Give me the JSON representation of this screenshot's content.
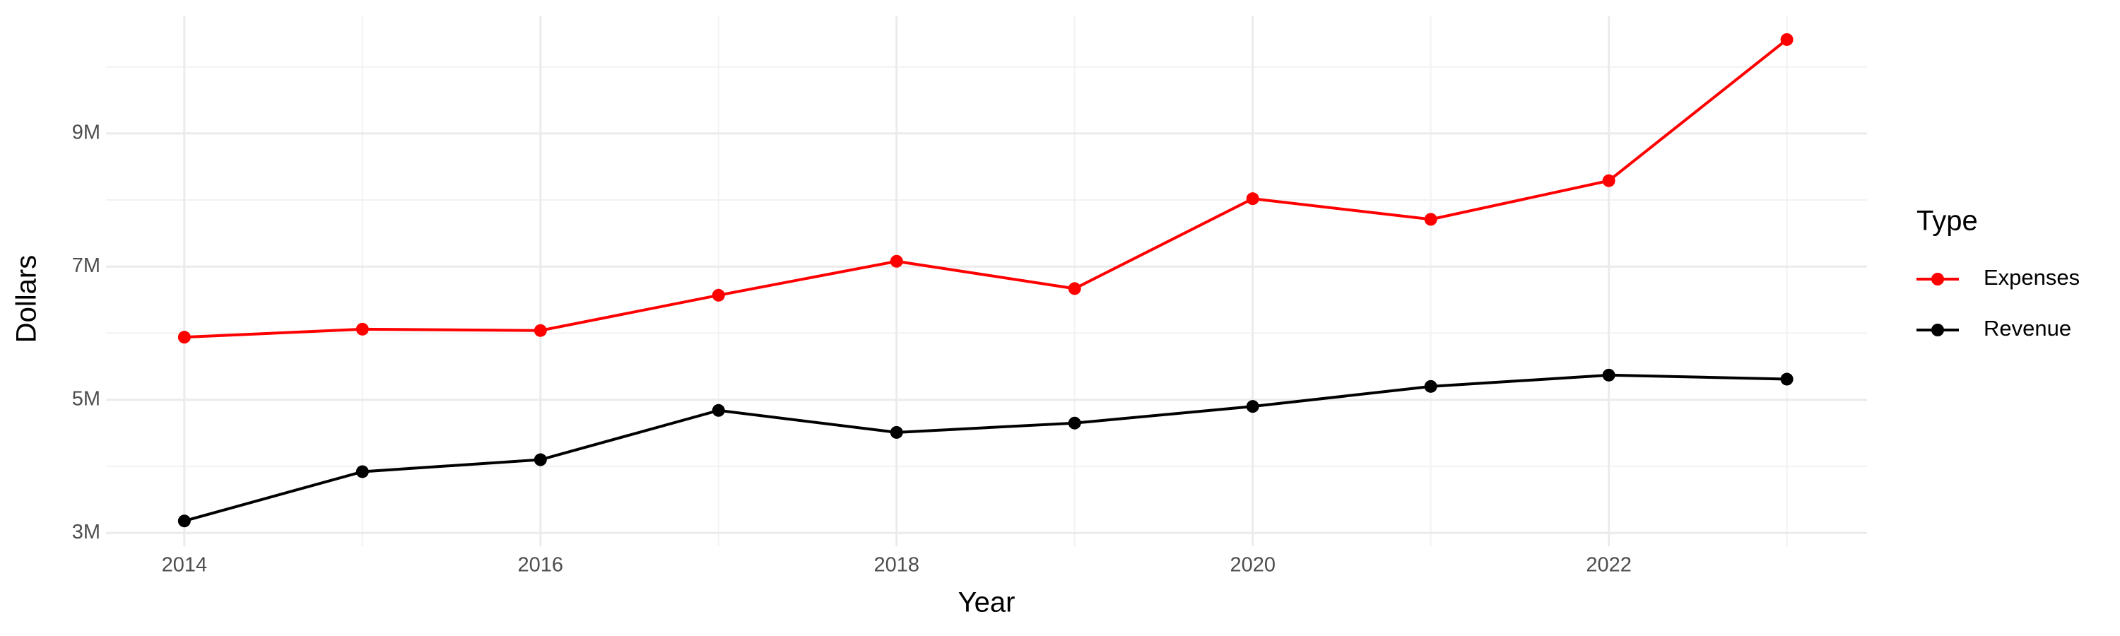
{
  "chart_data": {
    "type": "line",
    "x_label": "Year",
    "y_label": "Dollars",
    "legend_title": "Type",
    "legend_position": "right",
    "grid": true,
    "x": [
      2014,
      2015,
      2016,
      2017,
      2018,
      2019,
      2020,
      2021,
      2022,
      2023
    ],
    "series": [
      {
        "name": "Expenses",
        "color": "#ff0000",
        "values": [
          5940000,
          6060000,
          6040000,
          6570000,
          7080000,
          6670000,
          8020000,
          7710000,
          8290000,
          10410000
        ]
      },
      {
        "name": "Revenue",
        "color": "#000000",
        "values": [
          3180000,
          3920000,
          4100000,
          4840000,
          4510000,
          4650000,
          4900000,
          5200000,
          5370000,
          5310000
        ]
      }
    ],
    "xlim": [
      2013.56,
      2023.45
    ],
    "xticks": [
      2014,
      2016,
      2018,
      2020,
      2022
    ],
    "ylim": [
      2800000,
      10760000
    ],
    "yticks": [
      {
        "value": 3000000,
        "label": "3M"
      },
      {
        "value": 5000000,
        "label": "5M"
      },
      {
        "value": 7000000,
        "label": "7M"
      },
      {
        "value": 9000000,
        "label": "9M"
      }
    ]
  }
}
